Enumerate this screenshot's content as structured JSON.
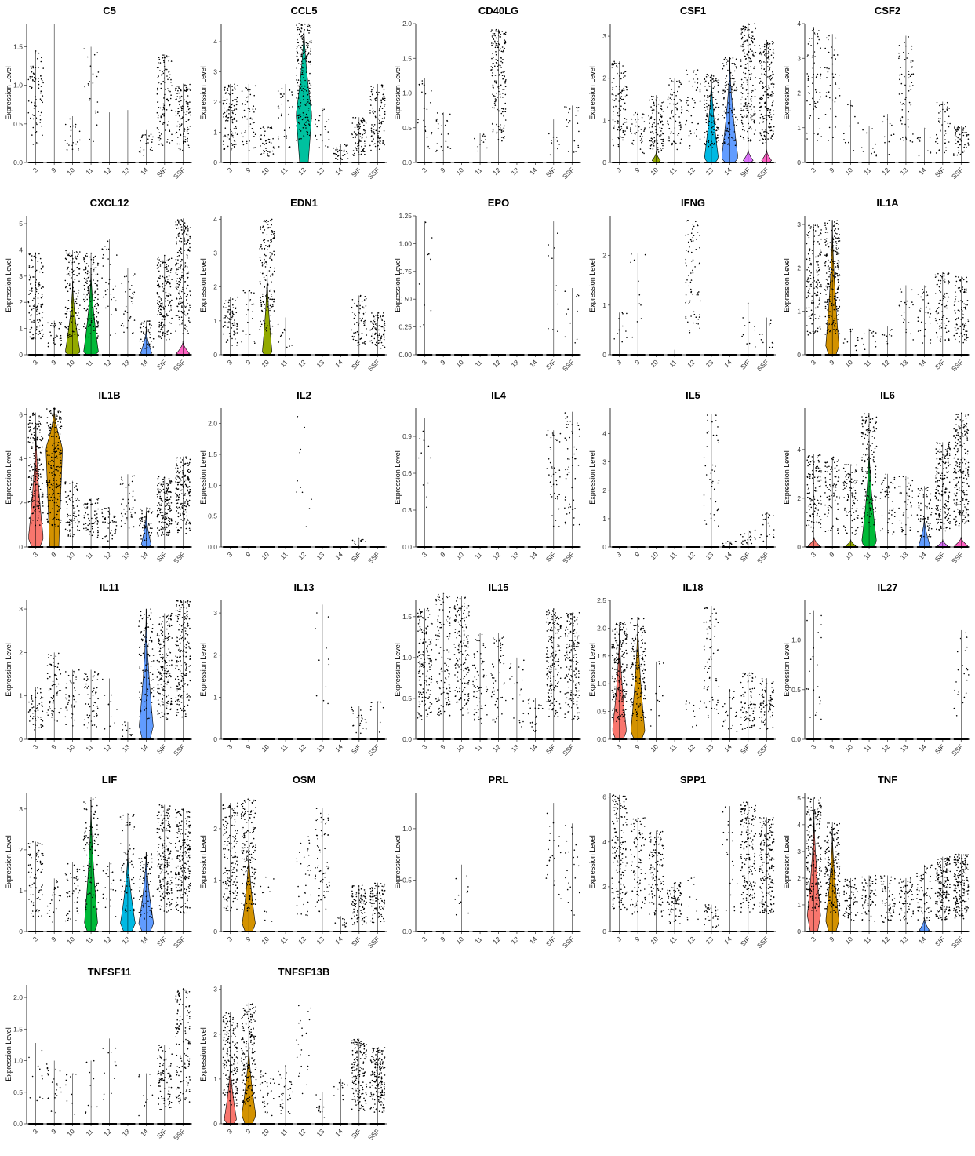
{
  "figure": {
    "type": "violin",
    "categories": [
      "3",
      "9",
      "10",
      "11",
      "12",
      "13",
      "14",
      "SIF",
      "SSF"
    ],
    "ylabel": "Expression Level",
    "colors": {
      "3": "#F8766D",
      "9": "#D39200",
      "10": "#93AA00",
      "11": "#00BA38",
      "12": "#00C19F",
      "13": "#00B9E3",
      "14": "#619CFF",
      "SIF": "#DB72FB",
      "SSF": "#FF61C3"
    }
  },
  "chart_data": [
    {
      "type": "violin",
      "title": "C5",
      "ylim": [
        0,
        1.8
      ],
      "yticks": [
        "0.0",
        "0.5",
        "1.0",
        "1.5"
      ],
      "max": [
        1.45,
        1.8,
        0.6,
        1.5,
        0.65,
        0.68,
        0.42,
        1.4,
        1.02
      ],
      "frac": [
        0.35,
        0,
        0.1,
        0.1,
        0,
        0,
        0.1,
        0.5,
        0.55
      ],
      "violins": []
    },
    {
      "type": "violin",
      "title": "CCL5",
      "ylim": [
        0,
        4.6
      ],
      "yticks": [
        "0",
        "1",
        "2",
        "3",
        "4"
      ],
      "max": [
        2.6,
        2.6,
        1.2,
        2.6,
        4.6,
        1.8,
        0.6,
        1.5,
        2.6
      ],
      "frac": [
        0.55,
        0.25,
        0.2,
        0.15,
        1,
        0.1,
        0.15,
        0.4,
        0.5
      ],
      "violins": [
        {
          "cat": "12",
          "top": 4.6,
          "peak": 1.6,
          "w": 0.95
        }
      ]
    },
    {
      "type": "violin",
      "title": "CD40LG",
      "ylim": [
        0,
        2.0
      ],
      "yticks": [
        "0.0",
        "0.5",
        "1.0",
        "1.5",
        "2.0"
      ],
      "max": [
        1.22,
        0.72,
        0,
        0.42,
        1.92,
        0,
        0,
        0.62,
        0.82
      ],
      "frac": [
        0.1,
        0.1,
        0,
        0.05,
        0.8,
        0,
        0,
        0.05,
        0.1
      ],
      "violins": []
    },
    {
      "type": "violin",
      "title": "CSF1",
      "ylim": [
        0,
        3.3
      ],
      "yticks": [
        "0",
        "1",
        "2",
        "3"
      ],
      "max": [
        2.4,
        1.2,
        1.6,
        2.0,
        2.2,
        2.1,
        2.5,
        3.3,
        2.9
      ],
      "frac": [
        0.5,
        0.2,
        0.45,
        0.35,
        0.2,
        0.6,
        0.55,
        0.9,
        0.95
      ],
      "violins": [
        {
          "cat": "10",
          "top": 0.25,
          "peak": 0.05,
          "w": 0.5
        },
        {
          "cat": "13",
          "top": 2.1,
          "peak": 0.1,
          "w": 0.85
        },
        {
          "cat": "14",
          "top": 2.5,
          "peak": 0.1,
          "w": 1.0
        },
        {
          "cat": "SIF",
          "top": 0.3,
          "peak": 0.05,
          "w": 0.6
        },
        {
          "cat": "SSF",
          "top": 0.3,
          "peak": 0.05,
          "w": 0.6
        }
      ]
    },
    {
      "type": "violin",
      "title": "CSF2",
      "ylim": [
        0,
        4.0
      ],
      "yticks": [
        "0",
        "1",
        "2",
        "3",
        "4"
      ],
      "max": [
        3.9,
        3.7,
        1.8,
        1.05,
        1.4,
        3.65,
        1.0,
        1.75,
        1.05
      ],
      "frac": [
        0.3,
        0.2,
        0.05,
        0.05,
        0.05,
        0.3,
        0.05,
        0.2,
        0.25
      ],
      "violins": []
    },
    {
      "type": "violin",
      "title": "CXCL12",
      "ylim": [
        0,
        5.3
      ],
      "yticks": [
        "0",
        "1",
        "2",
        "3",
        "4",
        "5"
      ],
      "max": [
        3.9,
        1.3,
        4.0,
        3.9,
        4.4,
        3.3,
        1.3,
        3.8,
        5.2
      ],
      "frac": [
        0.6,
        0.15,
        0.55,
        0.65,
        0.15,
        0.15,
        0.2,
        0.8,
        1
      ],
      "violins": [
        {
          "cat": "10",
          "top": 2.8,
          "peak": 0.1,
          "w": 0.9
        },
        {
          "cat": "11",
          "top": 3.3,
          "peak": 0.1,
          "w": 0.9
        },
        {
          "cat": "14",
          "top": 1.0,
          "peak": 0.05,
          "w": 0.7
        },
        {
          "cat": "SSF",
          "top": 0.5,
          "peak": 0.05,
          "w": 0.8
        }
      ]
    },
    {
      "type": "violin",
      "title": "EDN1",
      "ylim": [
        0,
        4.1
      ],
      "yticks": [
        "0",
        "1",
        "2",
        "3",
        "4"
      ],
      "max": [
        1.7,
        1.9,
        4.0,
        1.1,
        0,
        0,
        0,
        1.75,
        1.25
      ],
      "frac": [
        0.35,
        0.1,
        0.75,
        0.05,
        0,
        0,
        0,
        0.3,
        0.4
      ],
      "violins": [
        {
          "cat": "10",
          "top": 2.5,
          "peak": 0.05,
          "w": 0.6
        }
      ]
    },
    {
      "type": "violin",
      "title": "EPO",
      "ylim": [
        0,
        1.25
      ],
      "yticks": [
        "0.00",
        "0.25",
        "0.50",
        "0.75",
        "1.00",
        "1.25"
      ],
      "max": [
        1.2,
        0,
        0,
        0,
        0,
        0,
        0,
        1.2,
        0.6
      ],
      "frac": [
        0.05,
        0,
        0,
        0,
        0,
        0,
        0,
        0.05,
        0.05
      ],
      "violins": []
    },
    {
      "type": "violin",
      "title": "IFNG",
      "ylim": [
        0,
        2.8
      ],
      "yticks": [
        "0",
        "1",
        "2"
      ],
      "max": [
        0.85,
        2.05,
        0,
        0.1,
        2.75,
        0,
        0,
        1.05,
        0.75
      ],
      "frac": [
        0.05,
        0.05,
        0,
        0,
        0.35,
        0,
        0,
        0.05,
        0.05
      ],
      "violins": []
    },
    {
      "type": "violin",
      "title": "IL1A",
      "ylim": [
        0,
        3.2
      ],
      "yticks": [
        "0",
        "1",
        "2",
        "3"
      ],
      "max": [
        3.0,
        3.1,
        0.6,
        0.6,
        0.65,
        1.6,
        1.6,
        1.9,
        1.8
      ],
      "frac": [
        0.7,
        1,
        0.05,
        0.05,
        0.05,
        0.1,
        0.15,
        0.4,
        0.45
      ],
      "violins": [
        {
          "cat": "9",
          "top": 3.1,
          "peak": 0.2,
          "w": 0.8
        }
      ]
    },
    {
      "type": "violin",
      "title": "IL1B",
      "ylim": [
        0,
        6.3
      ],
      "yticks": [
        "0",
        "2",
        "4",
        "6"
      ],
      "max": [
        6.1,
        6.3,
        3.0,
        2.2,
        1.8,
        3.3,
        1.8,
        3.2,
        4.1
      ],
      "frac": [
        0.9,
        1,
        0.35,
        0.3,
        0.2,
        0.2,
        0.2,
        0.8,
        0.85
      ],
      "violins": [
        {
          "cat": "3",
          "top": 5.5,
          "peak": 0.4,
          "w": 0.9
        },
        {
          "cat": "9",
          "top": 6.3,
          "peak": 4.5,
          "w": 1.0
        },
        {
          "cat": "14",
          "top": 1.6,
          "peak": 0.1,
          "w": 0.6
        }
      ]
    },
    {
      "type": "violin",
      "title": "IL2",
      "ylim": [
        0,
        2.25
      ],
      "yticks": [
        "0.0",
        "0.5",
        "1.0",
        "1.5",
        "2.0"
      ],
      "max": [
        0,
        0,
        0,
        0,
        2.15,
        0,
        0,
        0.15,
        0
      ],
      "frac": [
        0,
        0,
        0,
        0,
        0.05,
        0,
        0,
        0.05,
        0
      ],
      "violins": []
    },
    {
      "type": "violin",
      "title": "IL4",
      "ylim": [
        0,
        1.13
      ],
      "yticks": [
        "0.0",
        "0.3",
        "0.6",
        "0.9"
      ],
      "max": [
        1.05,
        0,
        0,
        0,
        0,
        0,
        0,
        0.95,
        1.1
      ],
      "frac": [
        0.05,
        0,
        0,
        0,
        0,
        0,
        0,
        0.2,
        0.25
      ],
      "violins": []
    },
    {
      "type": "violin",
      "title": "IL5",
      "ylim": [
        0,
        4.9
      ],
      "yticks": [
        "0",
        "1",
        "2",
        "3",
        "4"
      ],
      "max": [
        0,
        0,
        0,
        0,
        0,
        4.7,
        0.2,
        0.6,
        1.2
      ],
      "frac": [
        0,
        0,
        0,
        0,
        0,
        0.2,
        0.05,
        0.1,
        0.1
      ],
      "violins": []
    },
    {
      "type": "violin",
      "title": "IL6",
      "ylim": [
        0,
        5.7
      ],
      "yticks": [
        "0",
        "2",
        "4"
      ],
      "max": [
        3.8,
        3.7,
        3.4,
        5.5,
        3.0,
        2.9,
        2.5,
        4.3,
        5.5
      ],
      "frac": [
        0.55,
        0.4,
        0.45,
        0.7,
        0.2,
        0.2,
        0.3,
        0.9,
        1
      ],
      "violins": [
        {
          "cat": "3",
          "top": 0.4,
          "peak": 0.05,
          "w": 0.7
        },
        {
          "cat": "10",
          "top": 0.3,
          "peak": 0.05,
          "w": 0.6
        },
        {
          "cat": "11",
          "top": 4.2,
          "peak": 0.2,
          "w": 0.9
        },
        {
          "cat": "14",
          "top": 1.2,
          "peak": 0.05,
          "w": 0.7
        },
        {
          "cat": "SIF",
          "top": 0.3,
          "peak": 0.05,
          "w": 0.6
        },
        {
          "cat": "SSF",
          "top": 0.4,
          "peak": 0.05,
          "w": 0.8
        }
      ]
    },
    {
      "type": "violin",
      "title": "IL11",
      "ylim": [
        0,
        3.2
      ],
      "yticks": [
        "0",
        "1",
        "2",
        "3"
      ],
      "max": [
        1.2,
        2.0,
        1.6,
        1.6,
        1.4,
        0.4,
        3.0,
        2.9,
        3.2
      ],
      "frac": [
        0.25,
        0.3,
        0.2,
        0.25,
        0.05,
        0.05,
        0.5,
        0.85,
        0.95
      ],
      "violins": [
        {
          "cat": "14",
          "top": 3.0,
          "peak": 0.3,
          "w": 0.85
        }
      ]
    },
    {
      "type": "violin",
      "title": "IL13",
      "ylim": [
        0,
        3.3
      ],
      "yticks": [
        "0",
        "1",
        "2",
        "3"
      ],
      "max": [
        0,
        0,
        0,
        0,
        0,
        3.2,
        0,
        0.8,
        0.9
      ],
      "frac": [
        0,
        0,
        0,
        0,
        0,
        0.05,
        0,
        0.1,
        0.05
      ],
      "violins": []
    },
    {
      "type": "violin",
      "title": "IL15",
      "ylim": [
        0,
        1.7
      ],
      "yticks": [
        "0.0",
        "0.5",
        "1.0",
        "1.5"
      ],
      "max": [
        1.6,
        1.8,
        1.75,
        1.3,
        1.3,
        1.0,
        0.5,
        1.6,
        1.55
      ],
      "frac": [
        0.8,
        0.55,
        0.75,
        0.3,
        0.25,
        0.1,
        0.1,
        0.8,
        0.85
      ],
      "violins": []
    },
    {
      "type": "violin",
      "title": "IL18",
      "ylim": [
        0,
        2.5
      ],
      "yticks": [
        "0.0",
        "0.5",
        "1.0",
        "1.5",
        "2.0",
        "2.5"
      ],
      "max": [
        2.1,
        2.2,
        1.4,
        0,
        0.7,
        2.4,
        0.9,
        1.2,
        1.1
      ],
      "frac": [
        0.9,
        0.75,
        0.05,
        0,
        0.05,
        0.3,
        0.1,
        0.35,
        0.35
      ],
      "violins": [
        {
          "cat": "3",
          "top": 2.0,
          "peak": 0.15,
          "w": 0.85
        },
        {
          "cat": "9",
          "top": 2.2,
          "peak": 0.15,
          "w": 0.85
        }
      ]
    },
    {
      "type": "violin",
      "title": "IL27",
      "ylim": [
        0,
        1.4
      ],
      "yticks": [
        "0.0",
        "0.5",
        "1.0"
      ],
      "max": [
        1.3,
        0,
        0,
        0,
        0,
        0,
        0,
        0,
        1.1
      ],
      "frac": [
        0.1,
        0,
        0,
        0,
        0,
        0,
        0,
        0,
        0.1
      ],
      "violins": []
    },
    {
      "type": "violin",
      "title": "LIF",
      "ylim": [
        0,
        3.4
      ],
      "yticks": [
        "0",
        "1",
        "2",
        "3"
      ],
      "max": [
        2.2,
        1.3,
        1.7,
        3.3,
        1.7,
        2.9,
        1.9,
        3.1,
        3.0
      ],
      "frac": [
        0.35,
        0.1,
        0.2,
        0.45,
        0.1,
        0.3,
        0.35,
        0.95,
        1
      ],
      "violins": [
        {
          "cat": "11",
          "top": 3.2,
          "peak": 0.2,
          "w": 0.8
        },
        {
          "cat": "13",
          "top": 2.0,
          "peak": 0.2,
          "w": 0.9
        },
        {
          "cat": "14",
          "top": 1.95,
          "peak": 0.2,
          "w": 0.9
        }
      ]
    },
    {
      "type": "violin",
      "title": "OSM",
      "ylim": [
        0,
        2.7
      ],
      "yticks": [
        "0",
        "1",
        "2"
      ],
      "max": [
        2.5,
        2.6,
        1.1,
        0,
        1.9,
        2.4,
        0.3,
        0.9,
        0.95
      ],
      "frac": [
        0.75,
        0.8,
        0.05,
        0,
        0.15,
        0.3,
        0.05,
        0.4,
        0.45
      ],
      "violins": [
        {
          "cat": "9",
          "top": 1.6,
          "peak": 0.15,
          "w": 0.8
        }
      ]
    },
    {
      "type": "violin",
      "title": "PRL",
      "ylim": [
        0,
        1.35
      ],
      "yticks": [
        "0.0",
        "0.5",
        "1.0"
      ],
      "max": [
        0,
        0,
        0.65,
        0,
        0,
        0,
        0,
        1.25,
        1.05
      ],
      "frac": [
        0,
        0,
        0.05,
        0,
        0,
        0,
        0,
        0.1,
        0.1
      ],
      "violins": []
    },
    {
      "type": "violin",
      "title": "SPP1",
      "ylim": [
        0,
        6.2
      ],
      "yticks": [
        "0",
        "2",
        "4",
        "6"
      ],
      "max": [
        6.1,
        5.1,
        4.5,
        2.2,
        2.7,
        1.2,
        5.6,
        5.8,
        5.1
      ],
      "frac": [
        0.75,
        0.4,
        0.55,
        0.35,
        0.05,
        0.15,
        0.1,
        0.8,
        0.9
      ],
      "violins": []
    },
    {
      "type": "violin",
      "title": "TNF",
      "ylim": [
        0,
        5.2
      ],
      "yticks": [
        "0",
        "1",
        "2",
        "3",
        "4",
        "5"
      ],
      "max": [
        5.0,
        4.1,
        2.0,
        2.1,
        2.1,
        2.0,
        2.5,
        2.8,
        2.9
      ],
      "frac": [
        1,
        0.85,
        0.3,
        0.3,
        0.3,
        0.3,
        0.3,
        0.8,
        0.85
      ],
      "violins": [
        {
          "cat": "3",
          "top": 4.5,
          "peak": 0.6,
          "w": 0.8
        },
        {
          "cat": "9",
          "top": 3.8,
          "peak": 0.4,
          "w": 0.8
        },
        {
          "cat": "14",
          "top": 0.5,
          "peak": 0.05,
          "w": 0.6
        }
      ]
    },
    {
      "type": "violin",
      "title": "TNFSF11",
      "ylim": [
        0,
        2.2
      ],
      "yticks": [
        "0.0",
        "0.5",
        "1.0",
        "1.5",
        "2.0"
      ],
      "max": [
        1.28,
        1.0,
        0.8,
        1.0,
        1.35,
        0,
        0.8,
        1.25,
        2.15
      ],
      "frac": [
        0.05,
        0.1,
        0.05,
        0.05,
        0.05,
        0,
        0.05,
        0.4,
        0.6
      ],
      "violins": []
    },
    {
      "type": "violin",
      "title": "TNFSF13B",
      "ylim": [
        0,
        3.1
      ],
      "yticks": [
        "0",
        "1",
        "2",
        "3"
      ],
      "max": [
        2.5,
        2.7,
        1.2,
        1.3,
        3.0,
        0.7,
        1.0,
        1.9,
        1.7
      ],
      "frac": [
        0.75,
        0.8,
        0.15,
        0.15,
        0.1,
        0.05,
        0.05,
        0.75,
        0.85
      ],
      "violins": [
        {
          "cat": "3",
          "top": 1.4,
          "peak": 0.1,
          "w": 0.75
        },
        {
          "cat": "9",
          "top": 1.8,
          "peak": 0.2,
          "w": 0.85
        }
      ]
    }
  ]
}
